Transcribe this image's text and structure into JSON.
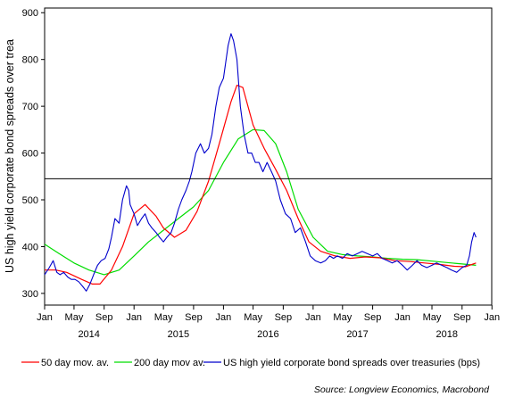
{
  "chart_data": {
    "type": "line",
    "ylabel": "US high yield corporate bond spreads over trea",
    "ylim": [
      275,
      910
    ],
    "yticks": [
      300,
      400,
      500,
      600,
      700,
      800,
      900
    ],
    "xlim": [
      "2014-01-01",
      "2018-12-31"
    ],
    "xtick_months": [
      "Jan",
      "May",
      "Sep",
      "Jan",
      "May",
      "Sep",
      "Jan",
      "May",
      "Sep",
      "Jan",
      "May",
      "Sep",
      "Jan",
      "May",
      "Sep",
      "Jan"
    ],
    "xtick_dates": [
      "2014-01-01",
      "2014-05-01",
      "2014-09-01",
      "2015-01-01",
      "2015-05-01",
      "2015-09-01",
      "2016-01-01",
      "2016-05-01",
      "2016-09-01",
      "2017-01-01",
      "2017-05-01",
      "2017-09-01",
      "2018-01-01",
      "2018-05-01",
      "2018-09-01",
      "2019-01-01"
    ],
    "xtick_years": [
      "2014",
      "2015",
      "2016",
      "2017",
      "2018"
    ],
    "year_label_dates": [
      "2014-07-01",
      "2015-07-01",
      "2016-07-01",
      "2017-07-01",
      "2018-07-01"
    ],
    "reference_line": 545,
    "series": [
      {
        "name": "US high yield corporate bond spreads over treasuries (bps)",
        "color": "#0000cc",
        "x": [
          "2014-01-01",
          "2014-01-20",
          "2014-02-05",
          "2014-02-20",
          "2014-03-05",
          "2014-03-20",
          "2014-04-05",
          "2014-04-20",
          "2014-05-05",
          "2014-05-20",
          "2014-06-05",
          "2014-06-20",
          "2014-07-05",
          "2014-07-20",
          "2014-08-05",
          "2014-08-20",
          "2014-09-05",
          "2014-09-20",
          "2014-10-01",
          "2014-10-15",
          "2014-11-01",
          "2014-11-15",
          "2014-12-01",
          "2014-12-10",
          "2014-12-16",
          "2015-01-01",
          "2015-01-15",
          "2015-02-01",
          "2015-02-15",
          "2015-03-01",
          "2015-03-15",
          "2015-04-01",
          "2015-04-15",
          "2015-05-01",
          "2015-05-15",
          "2015-06-01",
          "2015-06-15",
          "2015-07-01",
          "2015-07-15",
          "2015-08-01",
          "2015-08-15",
          "2015-08-25",
          "2015-09-10",
          "2015-09-29",
          "2015-10-15",
          "2015-11-01",
          "2015-11-15",
          "2015-12-01",
          "2015-12-15",
          "2016-01-01",
          "2016-01-20",
          "2016-02-01",
          "2016-02-11",
          "2016-02-25",
          "2016-03-10",
          "2016-03-25",
          "2016-04-10",
          "2016-04-25",
          "2016-05-10",
          "2016-05-25",
          "2016-06-10",
          "2016-06-27",
          "2016-07-15",
          "2016-08-01",
          "2016-08-20",
          "2016-09-10",
          "2016-10-01",
          "2016-10-20",
          "2016-11-10",
          "2016-12-01",
          "2016-12-20",
          "2017-01-10",
          "2017-02-01",
          "2017-02-20",
          "2017-03-10",
          "2017-03-25",
          "2017-04-10",
          "2017-05-01",
          "2017-05-20",
          "2017-06-10",
          "2017-07-01",
          "2017-07-20",
          "2017-08-10",
          "2017-09-01",
          "2017-09-20",
          "2017-10-10",
          "2017-11-01",
          "2017-11-20",
          "2017-12-10",
          "2018-01-01",
          "2018-01-20",
          "2018-02-10",
          "2018-03-01",
          "2018-03-20",
          "2018-04-10",
          "2018-05-01",
          "2018-05-20",
          "2018-06-10",
          "2018-07-01",
          "2018-07-20",
          "2018-08-10",
          "2018-09-01",
          "2018-09-20",
          "2018-10-01",
          "2018-10-10",
          "2018-10-20",
          "2018-10-28"
        ],
        "y": [
          340,
          355,
          370,
          345,
          340,
          345,
          335,
          330,
          330,
          325,
          315,
          305,
          320,
          340,
          360,
          370,
          375,
          395,
          420,
          460,
          450,
          500,
          530,
          520,
          490,
          470,
          445,
          460,
          470,
          450,
          440,
          430,
          420,
          410,
          420,
          430,
          450,
          480,
          500,
          520,
          540,
          560,
          600,
          620,
          600,
          610,
          640,
          700,
          740,
          760,
          830,
          855,
          840,
          800,
          700,
          640,
          600,
          600,
          580,
          580,
          560,
          580,
          560,
          540,
          500,
          470,
          460,
          430,
          440,
          410,
          380,
          370,
          365,
          370,
          380,
          375,
          380,
          375,
          385,
          380,
          385,
          390,
          385,
          380,
          385,
          375,
          370,
          365,
          370,
          360,
          350,
          360,
          370,
          360,
          355,
          360,
          365,
          360,
          355,
          350,
          345,
          355,
          360,
          380,
          410,
          430,
          420
        ]
      },
      {
        "name": "50 day mov. av.",
        "color": "#ff0000",
        "x": [
          "2014-01-01",
          "2014-02-15",
          "2014-04-01",
          "2014-06-01",
          "2014-07-15",
          "2014-08-15",
          "2014-10-01",
          "2014-11-15",
          "2015-01-01",
          "2015-02-15",
          "2015-04-01",
          "2015-05-01",
          "2015-06-15",
          "2015-08-01",
          "2015-09-15",
          "2015-11-01",
          "2015-12-15",
          "2016-02-01",
          "2016-02-25",
          "2016-03-20",
          "2016-05-01",
          "2016-06-15",
          "2016-08-01",
          "2016-09-15",
          "2016-11-01",
          "2016-12-15",
          "2017-02-01",
          "2017-04-01",
          "2017-06-01",
          "2017-08-01",
          "2017-10-01",
          "2017-12-01",
          "2018-02-01",
          "2018-04-01",
          "2018-06-01",
          "2018-08-01",
          "2018-09-15",
          "2018-10-28"
        ],
        "y": [
          350,
          350,
          345,
          330,
          320,
          320,
          350,
          400,
          470,
          490,
          465,
          440,
          420,
          435,
          475,
          540,
          620,
          710,
          745,
          740,
          660,
          610,
          565,
          520,
          460,
          410,
          390,
          380,
          375,
          378,
          376,
          370,
          368,
          365,
          362,
          358,
          357,
          365
        ]
      },
      {
        "name": "200 day mov av.",
        "color": "#00dd00",
        "x": [
          "2014-01-01",
          "2014-03-01",
          "2014-05-01",
          "2014-07-01",
          "2014-09-01",
          "2014-11-01",
          "2015-01-01",
          "2015-03-01",
          "2015-05-01",
          "2015-07-01",
          "2015-09-01",
          "2015-11-01",
          "2016-01-01",
          "2016-03-01",
          "2016-05-01",
          "2016-06-15",
          "2016-08-01",
          "2016-09-15",
          "2016-11-01",
          "2017-01-01",
          "2017-03-01",
          "2017-05-01",
          "2017-07-01",
          "2017-09-01",
          "2017-11-01",
          "2018-01-01",
          "2018-03-01",
          "2018-05-01",
          "2018-07-01",
          "2018-09-01",
          "2018-10-28"
        ],
        "y": [
          405,
          385,
          365,
          350,
          340,
          350,
          380,
          410,
          435,
          460,
          485,
          520,
          580,
          630,
          650,
          648,
          620,
          560,
          480,
          420,
          390,
          383,
          380,
          378,
          375,
          373,
          372,
          369,
          366,
          363,
          360
        ]
      }
    ],
    "legend": {
      "position": "bottom"
    },
    "source": "Source: Longview Economics, Macrobond"
  }
}
